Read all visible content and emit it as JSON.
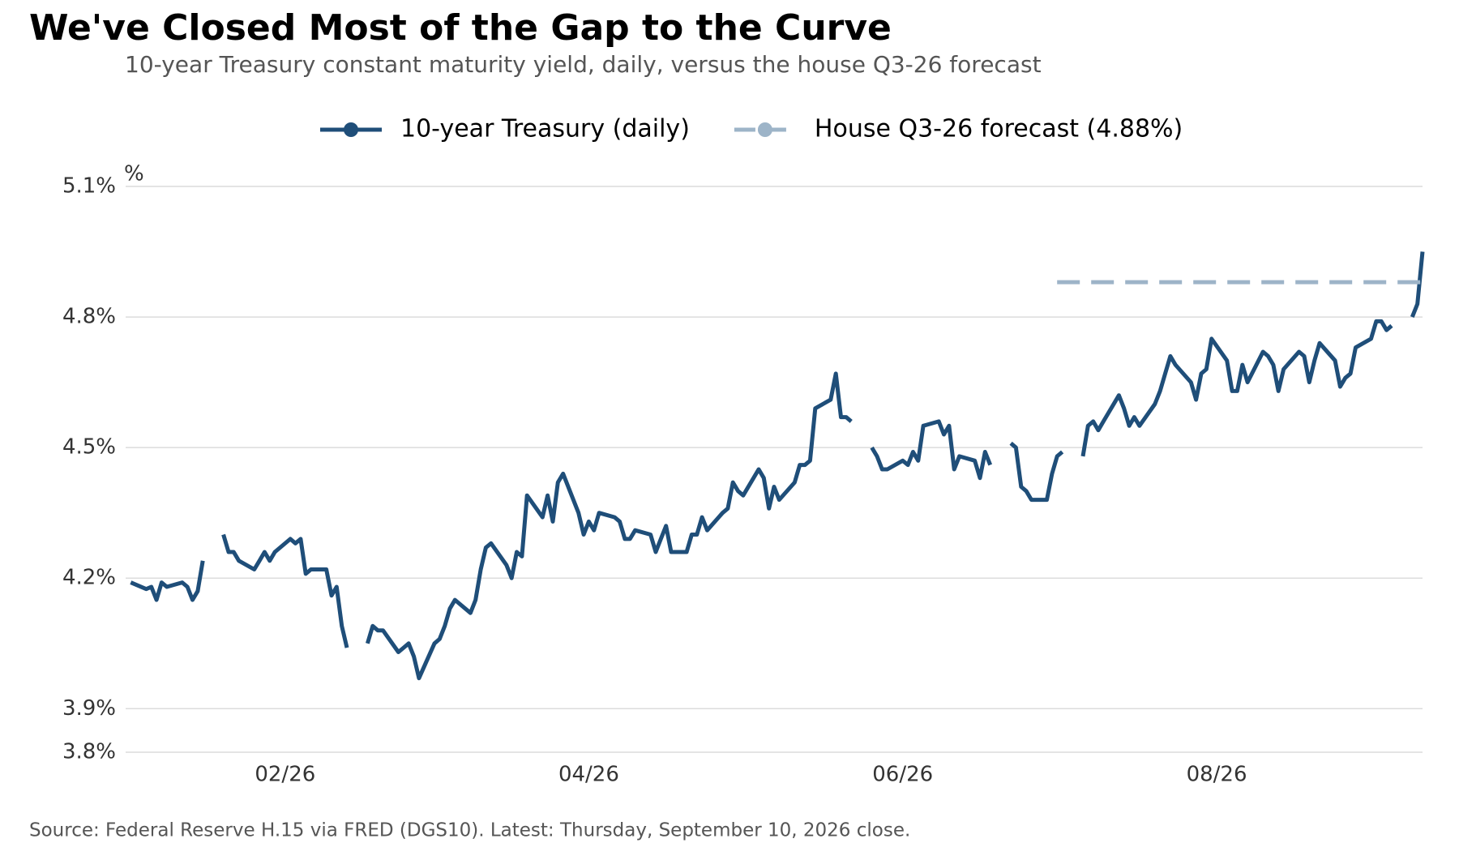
{
  "chart_data": {
    "type": "line",
    "title": "We've Closed Most of the Gap to the Curve",
    "subtitle": "10-year Treasury constant maturity yield, daily, versus the house Q3-26 forecast",
    "y_label": "%",
    "source": "Source: Federal Reserve H.15 via FRED (DGS10). Latest: Thursday, September 10, 2026 close.",
    "xlim": [
      0,
      252
    ],
    "xticks": [
      {
        "value": 31,
        "label": "02/26"
      },
      {
        "value": 90,
        "label": "04/26"
      },
      {
        "value": 151,
        "label": "06/26"
      },
      {
        "value": 212,
        "label": "08/26"
      }
    ],
    "ylim": [
      3.8,
      5.1
    ],
    "yticks": [
      {
        "value": 3.8,
        "label": "3.8%"
      },
      {
        "value": 3.9,
        "label": "3.9%"
      },
      {
        "value": 4.2,
        "label": "4.2%"
      },
      {
        "value": 4.5,
        "label": "4.5%"
      },
      {
        "value": 4.8,
        "label": "4.8%"
      },
      {
        "value": 5.1,
        "label": "5.1%"
      }
    ],
    "grid": true,
    "legend": "top",
    "series": [
      {
        "name": "10-year Treasury (daily)",
        "color": "#1f4e79",
        "dashed": false,
        "x": [
          1,
          4,
          5,
          6,
          7,
          8,
          11,
          12,
          13,
          14,
          15,
          18,
          19,
          20,
          21,
          22,
          25,
          26,
          27,
          28,
          29,
          32,
          33,
          34,
          35,
          36,
          39,
          40,
          41,
          42,
          43,
          46,
          47,
          48,
          49,
          50,
          53,
          54,
          55,
          56,
          57,
          60,
          61,
          62,
          63,
          64,
          67,
          68,
          69,
          70,
          71,
          74,
          75,
          76,
          77,
          78,
          81,
          82,
          83,
          84,
          85,
          88,
          89,
          90,
          91,
          92,
          95,
          96,
          97,
          98,
          99,
          102,
          103,
          104,
          105,
          106,
          109,
          110,
          111,
          112,
          113,
          116,
          117,
          118,
          119,
          120,
          123,
          124,
          125,
          126,
          127,
          130,
          131,
          132,
          133,
          134,
          137,
          138,
          139,
          140,
          141,
          144,
          145,
          146,
          147,
          148,
          151,
          152,
          153,
          154,
          155,
          158,
          159,
          160,
          161,
          162,
          165,
          166,
          167,
          168,
          169,
          172,
          173,
          174,
          175,
          176,
          179,
          180,
          181,
          182,
          183,
          186,
          187,
          188,
          189,
          190,
          193,
          194,
          195,
          196,
          197,
          200,
          201,
          202,
          203,
          204,
          207,
          208,
          209,
          210,
          211,
          214,
          215,
          216,
          217,
          218,
          221,
          222,
          223,
          224,
          225,
          228,
          229,
          230,
          231,
          232,
          235,
          236,
          237,
          238,
          239,
          242,
          243,
          244,
          245,
          246,
          249,
          250,
          251,
          252
        ],
        "values": [
          4.19,
          4.175,
          4.18,
          4.15,
          4.19,
          4.18,
          4.19,
          4.18,
          4.15,
          4.17,
          4.24,
          null,
          4.3,
          4.26,
          4.26,
          4.24,
          4.22,
          4.24,
          4.26,
          4.24,
          4.26,
          4.29,
          4.28,
          4.29,
          4.21,
          4.22,
          4.22,
          4.16,
          4.18,
          4.09,
          4.04,
          null,
          4.05,
          4.09,
          4.08,
          4.08,
          4.03,
          4.04,
          4.05,
          4.02,
          3.97,
          4.05,
          4.06,
          4.09,
          4.13,
          4.15,
          4.12,
          4.15,
          4.22,
          4.27,
          4.28,
          4.23,
          4.2,
          4.26,
          4.25,
          4.39,
          4.34,
          4.39,
          4.33,
          4.42,
          4.44,
          4.35,
          4.3,
          4.33,
          4.31,
          4.35,
          4.34,
          4.33,
          4.29,
          4.29,
          4.31,
          4.3,
          4.26,
          4.29,
          4.32,
          4.26,
          4.26,
          4.3,
          4.3,
          4.34,
          4.31,
          4.35,
          4.36,
          4.42,
          4.4,
          4.39,
          4.45,
          4.43,
          4.36,
          4.41,
          4.38,
          4.42,
          4.46,
          4.46,
          4.47,
          4.59,
          4.61,
          4.67,
          4.57,
          4.57,
          4.56,
          null,
          4.5,
          4.48,
          4.45,
          4.45,
          4.47,
          4.46,
          4.49,
          4.47,
          4.55,
          4.56,
          4.53,
          4.55,
          4.45,
          4.48,
          4.47,
          4.43,
          4.49,
          4.46,
          null,
          4.51,
          4.5,
          4.41,
          4.4,
          4.38,
          4.38,
          4.44,
          4.48,
          4.49,
          null,
          4.48,
          4.55,
          4.56,
          4.54,
          4.56,
          4.62,
          4.59,
          4.55,
          4.57,
          4.55,
          4.6,
          4.63,
          4.67,
          4.71,
          4.69,
          4.65,
          4.61,
          4.67,
          4.68,
          4.75,
          4.7,
          4.63,
          4.63,
          4.69,
          4.65,
          4.72,
          4.71,
          4.69,
          4.63,
          4.68,
          4.72,
          4.71,
          4.65,
          4.7,
          4.74,
          4.7,
          4.64,
          4.66,
          4.67,
          4.73,
          4.75,
          4.79,
          4.79,
          4.77,
          4.78,
          null,
          4.8,
          4.83,
          4.95
        ]
      },
      {
        "name": "House Q3-26 forecast (4.88%)",
        "color": "#9db4c8",
        "dashed": true,
        "x": [
          181,
          252
        ],
        "values": [
          4.88,
          4.88
        ]
      }
    ]
  }
}
